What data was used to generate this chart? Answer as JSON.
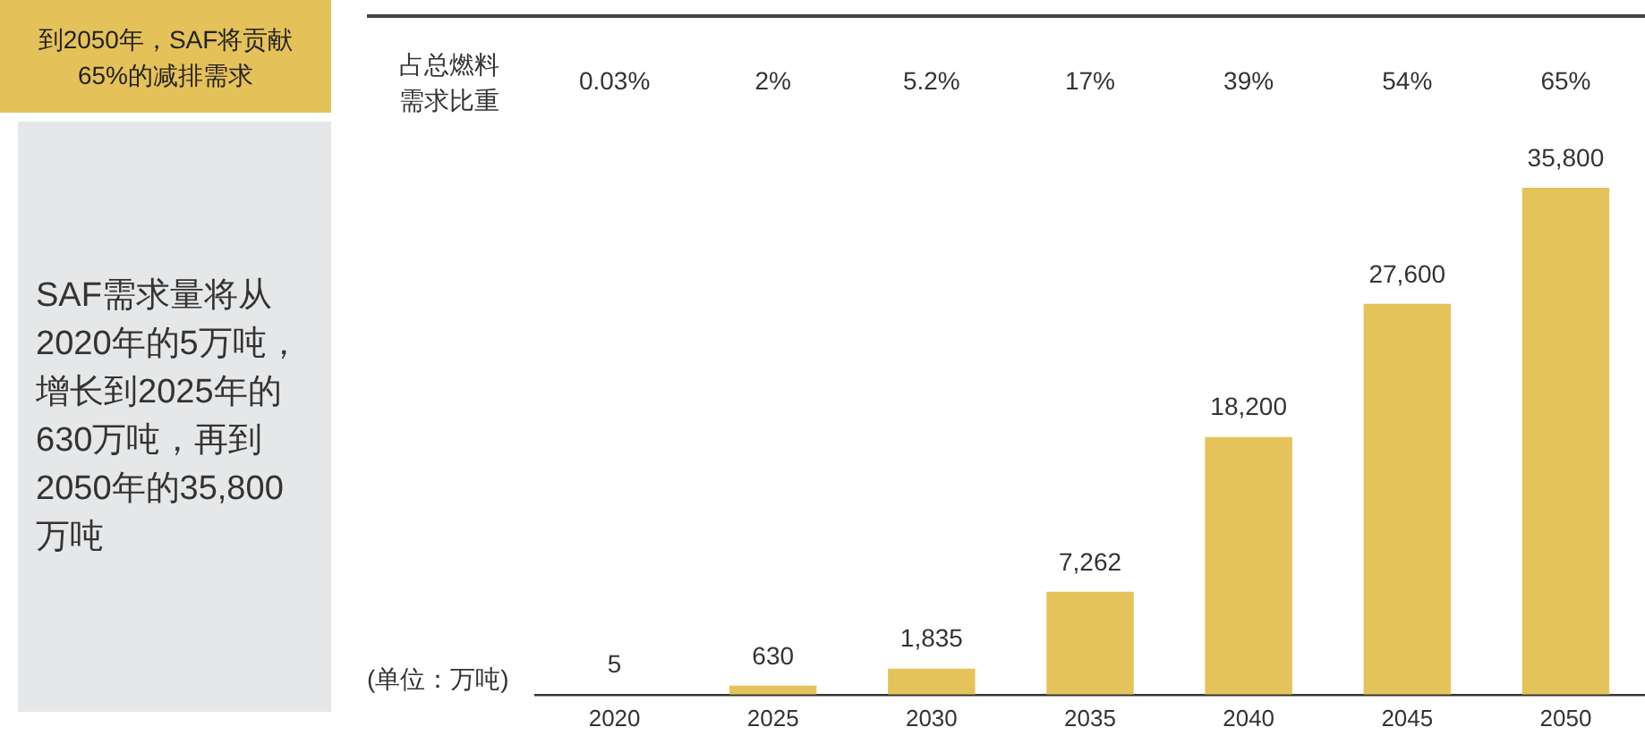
{
  "chart_data": {
    "type": "bar",
    "title": "到2050年，SAF将贡献65%的减排需求",
    "subtitle": "SAF需求量将从2020年的5万吨，增长到2025年的630万吨，再到2050年的35,800万吨",
    "ylabel": "(单位：万吨)",
    "categories": [
      "2020",
      "2025",
      "2030",
      "2035",
      "2040",
      "2045",
      "2050"
    ],
    "values": [
      5,
      630,
      1835,
      7262,
      18200,
      27600,
      35800
    ],
    "value_labels": [
      "5",
      "630",
      "1,835",
      "7,262",
      "18,200",
      "27,600",
      "35,800"
    ],
    "color": "#e3c35a",
    "tick_labels": "x",
    "grid": false,
    "legend": false,
    "annotations": [
      "占总燃料需求比重",
      "0.03%",
      "2%",
      "5.2%",
      "17%",
      "39%",
      "54%",
      "65%"
    ]
  }
}
